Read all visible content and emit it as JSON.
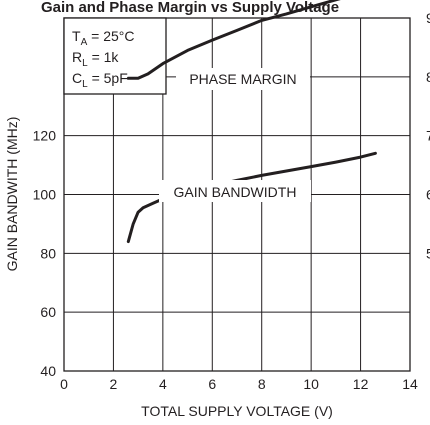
{
  "chart_data": {
    "type": "line",
    "title": "Gain and Phase Margin vs Supply Voltage",
    "xlabel": "TOTAL SUPPLY VOLTAGE (V)",
    "ylabel": "GAIN BANDWITH (MHz)",
    "xlim": [
      0,
      14
    ],
    "ylim": [
      40,
      160
    ],
    "x_ticks": [
      "0",
      "2",
      "4",
      "6",
      "8",
      "10",
      "12",
      "14"
    ],
    "y_ticks": [
      "40",
      "60",
      "80",
      "100",
      "120"
    ],
    "right_ticks": [
      "9",
      "8",
      "7",
      "6",
      "5"
    ],
    "grid": true,
    "conditions": {
      "ta": "T",
      "ta_sub": "A",
      "ta_value": " = 25°C",
      "rl": "R",
      "rl_sub": "L",
      "rl_value": " = 1k",
      "cl": "C",
      "cl_sub": "L",
      "cl_value": " = 5pF"
    },
    "series": [
      {
        "name": "PHASE MARGIN",
        "x": [
          2.6,
          3.0,
          3.4,
          4.0,
          5.0,
          6.0,
          7.0,
          8.0,
          9.0,
          10.0,
          11.0,
          12.0,
          12.6
        ],
        "y": [
          139.5,
          139.5,
          141,
          144.5,
          149,
          152.5,
          155.8,
          159.2,
          161.4,
          163.8,
          166.2,
          168.5,
          169.8
        ]
      },
      {
        "name": "GAIN BANDWIDTH",
        "x": [
          2.6,
          2.8,
          3.0,
          3.2,
          3.6,
          4.0,
          4.5,
          5.0,
          6.0,
          7.0,
          8.0,
          9.0,
          10.0,
          11.0,
          12.0,
          12.6
        ],
        "y": [
          84,
          90,
          94,
          95.5,
          97,
          98.5,
          100,
          101,
          103,
          104.8,
          106.5,
          108,
          109.5,
          111,
          112.7,
          114
        ]
      }
    ]
  }
}
